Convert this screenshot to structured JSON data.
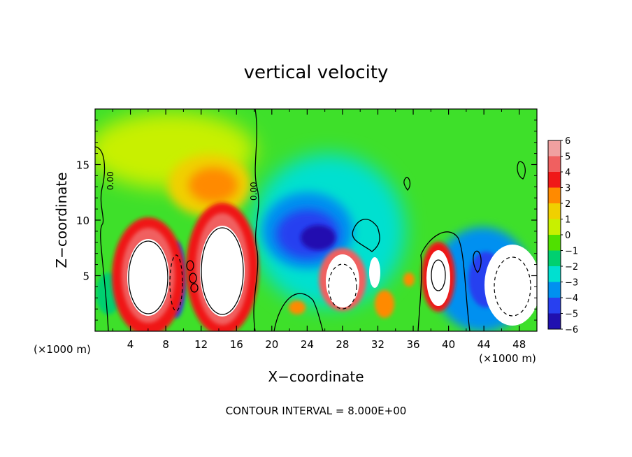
{
  "chart_data": {
    "type": "heatmap",
    "title": "vertical velocity",
    "xlabel": "X−coordinate",
    "ylabel": "Z−coordinate",
    "x_unit_label": "(×1000 m)",
    "y_unit_label": "(×1000 m)",
    "footer": "CONTOUR INTERVAL = 8.000E+00",
    "xlim": [
      0,
      50
    ],
    "ylim": [
      0,
      20
    ],
    "x_ticks": [
      "4",
      "8",
      "12",
      "16",
      "20",
      "24",
      "28",
      "32",
      "36",
      "40",
      "44",
      "48"
    ],
    "y_ticks": [
      "5",
      "10",
      "15"
    ],
    "contour_labels": [
      "0.00",
      "0.00"
    ],
    "colorbar": {
      "levels": [
        "6",
        "5",
        "4",
        "3",
        "2",
        "1",
        "0",
        "−1",
        "−2",
        "−3",
        "−4",
        "−5",
        "−6"
      ],
      "colors": [
        "#f0a0a0",
        "#f06060",
        "#f01818",
        "#ff8a00",
        "#f0d000",
        "#c8f000",
        "#50e000",
        "#00d070",
        "#00e0d0",
        "#0090f0",
        "#2840f0",
        "#2010b0",
        "#7a20b0"
      ]
    },
    "features": [
      {
        "kind": "updraft",
        "x": 5.5,
        "z": 5.0,
        "strength": "max",
        "note": "white core > 6"
      },
      {
        "kind": "downdraft",
        "x": 9.5,
        "z": 5.0,
        "strength": "strong"
      },
      {
        "kind": "updraft",
        "x": 14.0,
        "z": 5.5,
        "strength": "max"
      },
      {
        "kind": "updraft",
        "x": 13.5,
        "z": 13.0,
        "strength": "moderate"
      },
      {
        "kind": "downdraft",
        "x": 24.5,
        "z": 9.0,
        "strength": "strong"
      },
      {
        "kind": "updraft",
        "x": 28.0,
        "z": 4.5,
        "strength": "max"
      },
      {
        "kind": "updraft",
        "x": 31.5,
        "z": 5.0,
        "strength": "max"
      },
      {
        "kind": "updraft",
        "x": 38.5,
        "z": 5.0,
        "strength": "max"
      },
      {
        "kind": "downdraft",
        "x": 44.0,
        "z": 4.5,
        "strength": "strong"
      },
      {
        "kind": "updraft",
        "x": 46.5,
        "z": 5.0,
        "strength": "max"
      }
    ]
  }
}
